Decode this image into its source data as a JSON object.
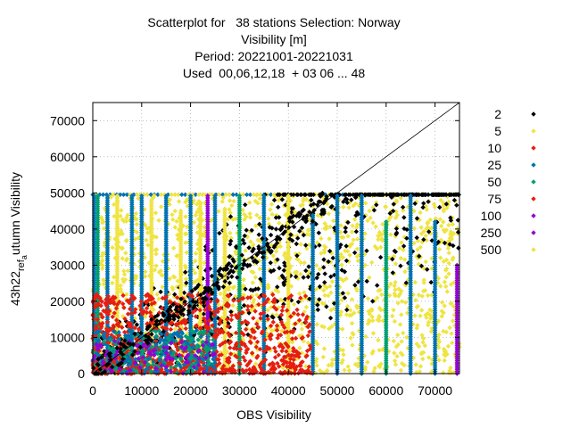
{
  "chart_data": {
    "type": "scatter",
    "title_lines": [
      "Scatterplot for   38 stations Selection: Norway",
      "Visibility [m]",
      "Period: 20221001-20221031",
      "Used  00,06,12,18  + 03 06 ... 48"
    ],
    "xlabel": "OBS Visibility",
    "ylabel_main": "43h22",
    "ylabel_sub": "ref",
    "ylabel_subsub": "a",
    "ylabel_rest": "utumn Visibility",
    "xlim": [
      0,
      75000
    ],
    "ylim": [
      0,
      75000
    ],
    "xticks": [
      "0",
      "10000",
      "20000",
      "30000",
      "40000",
      "50000",
      "60000",
      "70000"
    ],
    "yticks": [
      "0",
      "10000",
      "20000",
      "30000",
      "40000",
      "50000",
      "60000",
      "70000"
    ],
    "grid": true,
    "diagonal": true,
    "legend_position": "right",
    "series": [
      {
        "name": "2",
        "color": "#000000"
      },
      {
        "name": "5",
        "color": "#f0e442"
      },
      {
        "name": "10",
        "color": "#e51e10"
      },
      {
        "name": "25",
        "color": "#0072b2"
      },
      {
        "name": "50",
        "color": "#009e73"
      },
      {
        "name": "75",
        "color": "#e51e10"
      },
      {
        "name": "100",
        "color": "#9400d3"
      },
      {
        "name": "250",
        "color": "#9400d3"
      },
      {
        "name": "500",
        "color": "#f0e442"
      }
    ],
    "observation_columns": [
      {
        "x": 300,
        "ymax": 49500,
        "color": "#0072b2"
      },
      {
        "x": 1000,
        "ymax": 49500,
        "color": "#009e73"
      },
      {
        "x": 3000,
        "ymax": 49500,
        "color": "#0072b2"
      },
      {
        "x": 5000,
        "ymax": 49500,
        "color": "#f0e442"
      },
      {
        "x": 8000,
        "ymax": 49500,
        "color": "#0072b2"
      },
      {
        "x": 10000,
        "ymax": 49500,
        "color": "#0072b2"
      },
      {
        "x": 12000,
        "ymax": 48000,
        "color": "#f0e442"
      },
      {
        "x": 15000,
        "ymax": 49500,
        "color": "#0072b2"
      },
      {
        "x": 18000,
        "ymax": 45000,
        "color": "#f0e442"
      },
      {
        "x": 20000,
        "ymax": 49500,
        "color": "#0072b2"
      },
      {
        "x": 22000,
        "ymax": 47000,
        "color": "#f0e442"
      },
      {
        "x": 23500,
        "ymax": 49500,
        "color": "#9400d3"
      },
      {
        "x": 25000,
        "ymax": 49500,
        "color": "#0072b2"
      },
      {
        "x": 27000,
        "ymax": 46000,
        "color": "#f0e442"
      },
      {
        "x": 30000,
        "ymax": 49500,
        "color": "#009e73"
      },
      {
        "x": 35000,
        "ymax": 49500,
        "color": "#0072b2"
      },
      {
        "x": 40000,
        "ymax": 49500,
        "color": "#f0e442"
      },
      {
        "x": 45000,
        "ymax": 44000,
        "color": "#0072b2"
      },
      {
        "x": 50000,
        "ymax": 49500,
        "color": "#0072b2"
      },
      {
        "x": 55000,
        "ymax": 49500,
        "color": "#0072b2"
      },
      {
        "x": 60000,
        "ymax": 42000,
        "color": "#009e73"
      },
      {
        "x": 65000,
        "ymax": 49500,
        "color": "#0072b2"
      },
      {
        "x": 70000,
        "ymax": 42000,
        "color": "#0072b2"
      },
      {
        "x": 74500,
        "ymax": 30000,
        "color": "#9400d3"
      }
    ],
    "cap_value": 49500
  }
}
